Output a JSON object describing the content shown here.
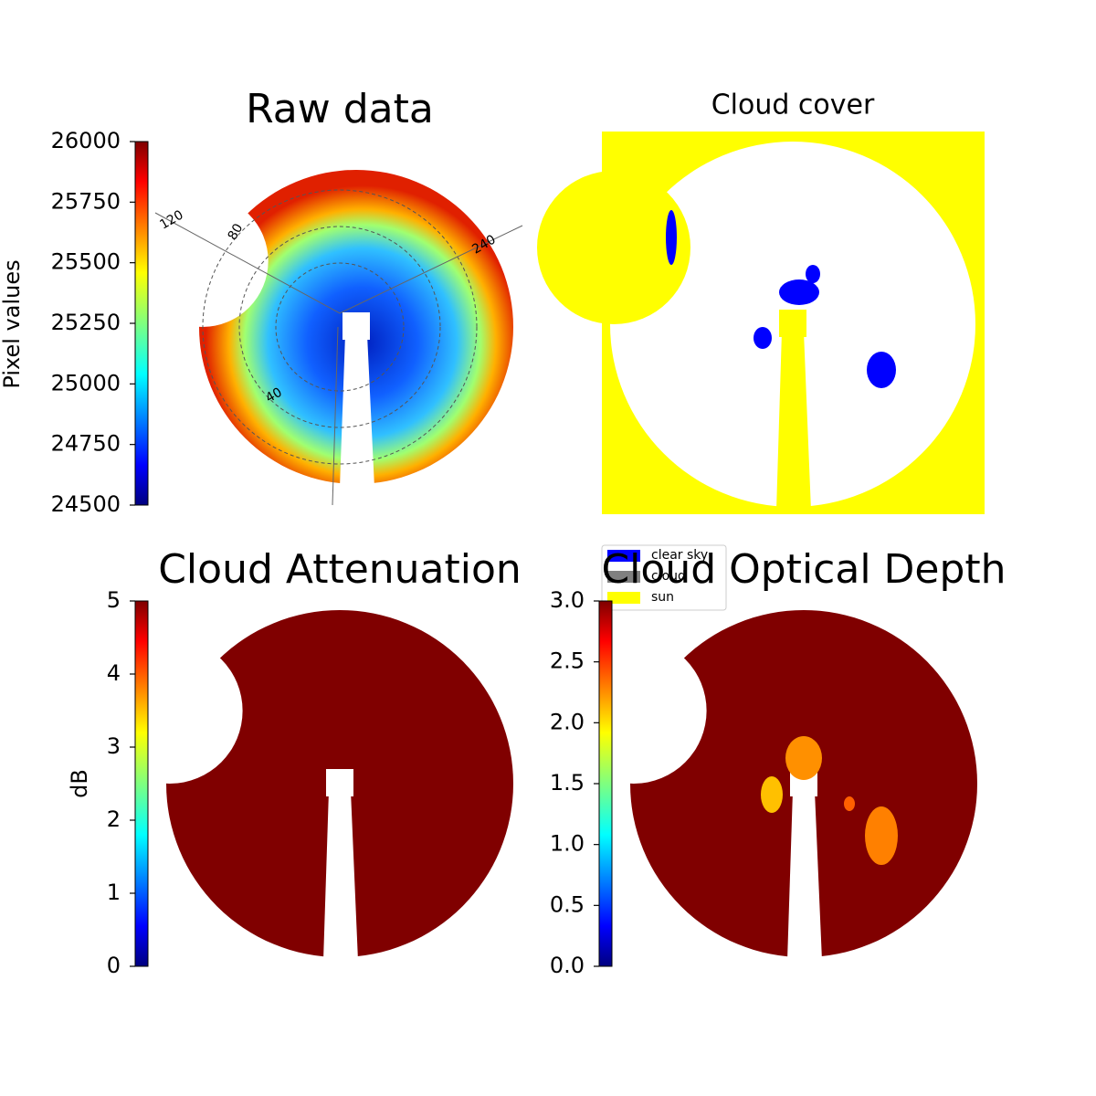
{
  "chart_data": [
    {
      "type": "heatmap",
      "title": "Raw data",
      "ylabel": "Pixel values",
      "colormap": "jet",
      "ylim": [
        24500,
        26000
      ],
      "yticks": [
        24500,
        24750,
        25000,
        25250,
        25500,
        25750,
        26000
      ],
      "annotations": [
        "120",
        "80",
        "240",
        "40"
      ]
    },
    {
      "type": "categorical",
      "title": "Cloud cover",
      "legend": [
        {
          "name": "clear sky",
          "color": "#0000ff"
        },
        {
          "name": "cloud",
          "color": "#808080"
        },
        {
          "name": "sun",
          "color": "#ffff00"
        }
      ]
    },
    {
      "type": "heatmap",
      "title": "Cloud Attenuation",
      "ylabel": "dB",
      "colormap": "jet",
      "ylim": [
        0,
        5
      ],
      "yticks": [
        0,
        1,
        2,
        3,
        4,
        5
      ]
    },
    {
      "type": "heatmap",
      "title": "Cloud Optical Depth",
      "colormap": "jet",
      "ylim": [
        0,
        3
      ],
      "yticks": [
        {
          "value": 0,
          "label": "0.0"
        },
        {
          "value": 0.5,
          "label": "0.5"
        },
        {
          "value": 1,
          "label": "1.0"
        },
        {
          "value": 1.5,
          "label": "1.5"
        },
        {
          "value": 2,
          "label": "2.0"
        },
        {
          "value": 2.5,
          "label": "2.5"
        },
        {
          "value": 3,
          "label": "3.0"
        }
      ]
    }
  ]
}
